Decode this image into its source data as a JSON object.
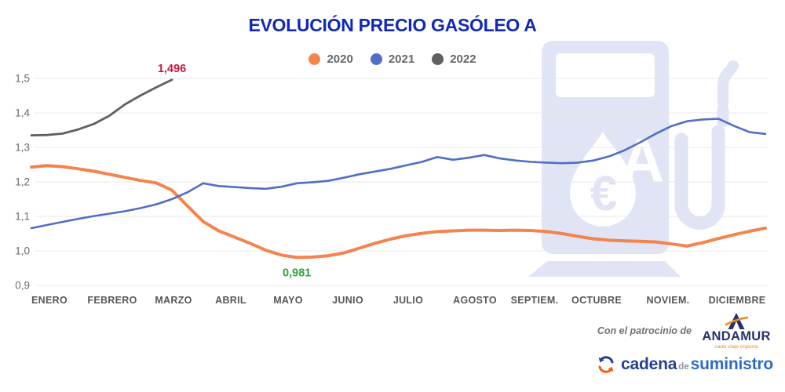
{
  "chart_data": {
    "type": "line",
    "title": "EVOLUCIÓN PRECIO GASÓLEO A",
    "grid": true,
    "legend_position": "top",
    "x_axis": {
      "categories": [
        "ENERO",
        "FEBRERO",
        "MARZO",
        "ABRIL",
        "MAYO",
        "JUNIO",
        "JULIO",
        "AGOSTO",
        "SEPTIEM.",
        "OCTUBRE",
        "NOVIEM.",
        "DICIEMBRE"
      ],
      "granularity": "weekly"
    },
    "y_axis": {
      "min": 0.9,
      "max": 1.5,
      "ticks": [
        {
          "label": "1,5",
          "value": 1.5
        },
        {
          "label": "1,4",
          "value": 1.4
        },
        {
          "label": "1,3",
          "value": 1.3
        },
        {
          "label": "1,2",
          "value": 1.2
        },
        {
          "label": "1,1",
          "value": 1.1
        },
        {
          "label": "1,0",
          "value": 1.0
        },
        {
          "label": "0,9",
          "value": 0.9
        }
      ]
    },
    "series": [
      {
        "name": "2020",
        "color": "#F5834E",
        "values": [
          1.243,
          1.247,
          1.244,
          1.238,
          1.231,
          1.222,
          1.213,
          1.204,
          1.197,
          1.176,
          1.13,
          1.085,
          1.058,
          1.04,
          1.022,
          1.002,
          0.988,
          0.981,
          0.982,
          0.986,
          0.994,
          1.008,
          1.022,
          1.034,
          1.044,
          1.051,
          1.056,
          1.058,
          1.06,
          1.06,
          1.059,
          1.06,
          1.059,
          1.056,
          1.05,
          1.042,
          1.035,
          1.031,
          1.029,
          1.028,
          1.026,
          1.02,
          1.014,
          1.024,
          1.036,
          1.047,
          1.057,
          1.066
        ]
      },
      {
        "name": "2021",
        "color": "#4F6EC5",
        "values": [
          1.066,
          1.075,
          1.084,
          1.093,
          1.101,
          1.108,
          1.115,
          1.124,
          1.135,
          1.15,
          1.17,
          1.196,
          1.188,
          1.185,
          1.182,
          1.18,
          1.186,
          1.196,
          1.199,
          1.203,
          1.212,
          1.222,
          1.23,
          1.238,
          1.248,
          1.258,
          1.272,
          1.264,
          1.27,
          1.278,
          1.268,
          1.262,
          1.258,
          1.256,
          1.254,
          1.256,
          1.262,
          1.274,
          1.292,
          1.315,
          1.34,
          1.362,
          1.376,
          1.381,
          1.383,
          1.362,
          1.344,
          1.339
        ]
      },
      {
        "name": "2022",
        "color": "#5E5F61",
        "values": [
          1.335,
          1.336,
          1.34,
          1.352,
          1.368,
          1.392,
          1.425,
          1.451,
          1.474,
          1.496
        ]
      }
    ],
    "annotations": [
      {
        "series": "2022",
        "point": "max",
        "text": "1,496",
        "color": "#C3193D",
        "position": "above"
      },
      {
        "series": "2020",
        "point": "min",
        "text": "0,981",
        "color": "#2FA33C",
        "position": "below"
      }
    ]
  },
  "sponsor": {
    "patrocinio_label": "Con el patrocinio de",
    "andamur": {
      "name": "ANDAMUR",
      "tagline": "cada viaje importa"
    },
    "cadena": {
      "word1": "cadena",
      "word2": "de",
      "word3": "suministro"
    }
  },
  "colors": {
    "title": "#1229B5",
    "watermark": "#E0E4F4",
    "gridline": "#E9E9E9"
  }
}
